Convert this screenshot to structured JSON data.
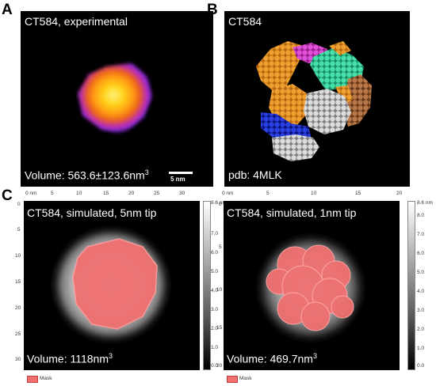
{
  "panels": {
    "a": {
      "letter": "A",
      "title": "CT584, experimental",
      "volume_prefix": "Volume: 563.6±123.6nm",
      "volume_sup": "3",
      "scalebar": "5 nm"
    },
    "b": {
      "letter": "B",
      "title": "CT584",
      "pdb": "pdb: 4MLK"
    },
    "c": {
      "letter": "C",
      "left": {
        "title": "CT584, simulated, 5nm tip",
        "volume_prefix": "Volume: 1118nm",
        "volume_sup": "3",
        "x_ticks": [
          "0 nm",
          "5",
          "10",
          "15",
          "20",
          "25",
          "30"
        ],
        "y_ticks": [
          "0",
          "5",
          "10",
          "15",
          "20",
          "25",
          "30"
        ],
        "cbar_max": "8.6 nm",
        "cbar_ticks": [
          "7.0",
          "6.0",
          "5.0",
          "4.0",
          "3.0",
          "2.0",
          "1.0",
          "0.0"
        ],
        "mask_label": "Mask"
      },
      "right": {
        "title": "CT584, simulated, 1nm tip",
        "volume_prefix": "Volume: 469.7nm",
        "volume_sup": "3",
        "x_ticks": [
          "0 nm",
          "5",
          "10",
          "15",
          "20"
        ],
        "y_ticks": [
          "0",
          "5",
          "10",
          "15",
          "20"
        ],
        "cbar_max": "8.6 nm",
        "cbar_ticks": [
          "8.0",
          "7.0",
          "6.0",
          "5.0",
          "4.0",
          "3.0",
          "2.0",
          "1.0",
          "0.0"
        ],
        "mask_label": "Mask"
      }
    }
  },
  "colors": {
    "mask": "#f07070",
    "protein_orange": "#e8962a",
    "protein_magenta": "#d63fc8",
    "protein_teal": "#3ad6a0",
    "protein_gray": "#c8c8c8",
    "protein_blue": "#1a2fd0",
    "protein_brown": "#b07040"
  }
}
